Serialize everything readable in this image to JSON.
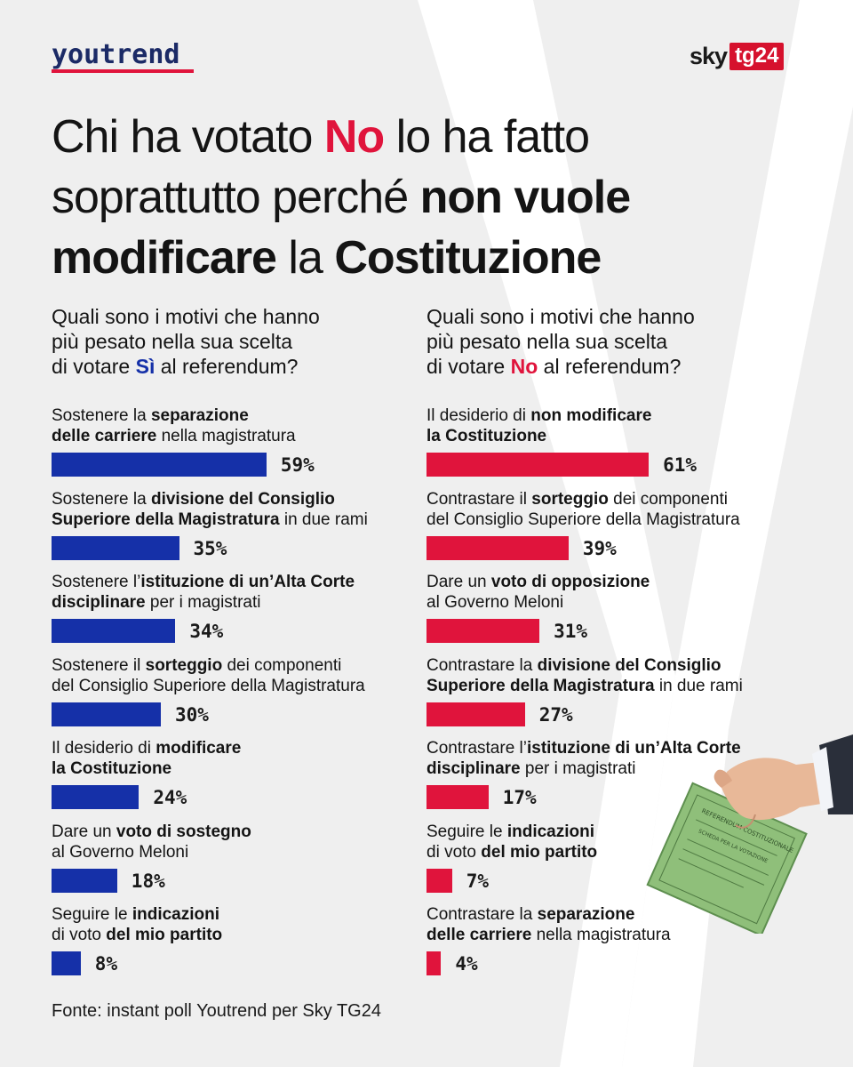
{
  "brand": {
    "youtrend_logo": "youtrend",
    "sky_logo_part1": "sky",
    "sky_logo_part2": "tg24"
  },
  "colors": {
    "background": "#efefef",
    "si_bar": "#1530a8",
    "no_bar": "#e0143c",
    "text": "#141414"
  },
  "headline": {
    "line1_part1": "Chi ha votato ",
    "line1_red": "No",
    "line1_part2": " lo ha fatto",
    "line2_part1": "soprattutto perché ",
    "line2_bold": "non vuole",
    "line3_bold1": "modificare",
    "line3_part": " la ",
    "line3_bold2": "Costituzione"
  },
  "icons": [
    "hand-ballot-illustration",
    "letter-v-watermark"
  ],
  "chart_data": [
    {
      "type": "bar",
      "orientation": "horizontal",
      "question": {
        "line1": "Quali sono i motivi  che hanno",
        "line2": "più pesato nella sua scelta",
        "line3_part1": "di votare ",
        "line3_highlight": "Sì",
        "line3_part2": " al referendum?"
      },
      "color": "#1530a8",
      "categories": [
        "Sostenere la separazione delle carriere nella magistratura",
        "Sostenere la divisione del Consiglio Superiore della Magistratura in due rami",
        "Sostenere l’istituzione di un’Alta Corte disciplinare per i magistrati",
        "Sostenere il sorteggio dei componenti del Consiglio Superiore della Magistratura",
        "Il desiderio di modificare la Costituzione",
        "Dare un voto di sostegno al Governo Meloni",
        "Seguire le indicazioni di voto del mio partito"
      ],
      "values": [
        59,
        35,
        34,
        30,
        24,
        18,
        8
      ],
      "value_labels": [
        "59%",
        "35%",
        "34%",
        "30%",
        "24%",
        "18%",
        "8%"
      ],
      "label_lines": [
        [
          [
            {
              "t": "Sostenere la "
            },
            {
              "t": "separazione",
              "b": true
            }
          ],
          [
            {
              "t": "delle carriere",
              "b": true
            },
            {
              "t": " nella magistratura"
            }
          ]
        ],
        [
          [
            {
              "t": "Sostenere la "
            },
            {
              "t": "divisione del Consiglio",
              "b": true
            }
          ],
          [
            {
              "t": "Superiore della Magistratura",
              "b": true
            },
            {
              "t": " in due rami"
            }
          ]
        ],
        [
          [
            {
              "t": "Sostenere l’"
            },
            {
              "t": "istituzione di un’Alta Corte",
              "b": true
            }
          ],
          [
            {
              "t": "disciplinare",
              "b": true
            },
            {
              "t": " per i magistrati"
            }
          ]
        ],
        [
          [
            {
              "t": "Sostenere il "
            },
            {
              "t": "sorteggio",
              "b": true
            },
            {
              "t": " dei componenti"
            }
          ],
          [
            {
              "t": "del Consiglio Superiore della Magistratura"
            }
          ]
        ],
        [
          [
            {
              "t": "Il desiderio di "
            },
            {
              "t": "modificare",
              "b": true
            }
          ],
          [
            {
              "t": "la Costituzione",
              "b": true
            }
          ]
        ],
        [
          [
            {
              "t": "Dare un "
            },
            {
              "t": "voto di sostegno",
              "b": true
            }
          ],
          [
            {
              "t": "al Governo Meloni"
            }
          ]
        ],
        [
          [
            {
              "t": "Seguire le "
            },
            {
              "t": "indicazioni",
              "b": true
            }
          ],
          [
            {
              "t": "di voto "
            },
            {
              "t": "del mio partito",
              "b": true
            }
          ]
        ]
      ]
    },
    {
      "type": "bar",
      "orientation": "horizontal",
      "question": {
        "line1": "Quali sono i motivi che hanno",
        "line2": "più pesato nella sua scelta",
        "line3_part1": "di votare ",
        "line3_highlight": "No",
        "line3_part2": " al referendum?"
      },
      "color": "#e0143c",
      "categories": [
        "Il desiderio di non modificare la Costituzione",
        "Contrastare il sorteggio dei componenti del Consiglio Superiore della Magistratura",
        "Dare un voto di opposizione al Governo Meloni",
        "Contrastare la divisione del Consiglio Superiore della Magistratura in due rami",
        "Contrastare l’istituzione di un’Alta Corte disciplinare per i magistrati",
        "Seguire le indicazioni di voto del mio partito",
        "Contrastare la separazione delle carriere nella magistratura"
      ],
      "values": [
        61,
        39,
        31,
        27,
        17,
        7,
        4
      ],
      "value_labels": [
        "61%",
        "39%",
        "31%",
        "27%",
        "17%",
        "7%",
        "4%"
      ],
      "label_lines": [
        [
          [
            {
              "t": "Il desiderio di "
            },
            {
              "t": "non modificare",
              "b": true
            }
          ],
          [
            {
              "t": "la Costituzione",
              "b": true
            }
          ]
        ],
        [
          [
            {
              "t": "Contrastare il "
            },
            {
              "t": "sorteggio",
              "b": true
            },
            {
              "t": " dei componenti"
            }
          ],
          [
            {
              "t": "del Consiglio Superiore della Magistratura"
            }
          ]
        ],
        [
          [
            {
              "t": "Dare un "
            },
            {
              "t": "voto di opposizione",
              "b": true
            }
          ],
          [
            {
              "t": "al Governo Meloni"
            }
          ]
        ],
        [
          [
            {
              "t": "Contrastare la "
            },
            {
              "t": "divisione del Consiglio",
              "b": true
            }
          ],
          [
            {
              "t": "Superiore della Magistratura",
              "b": true
            },
            {
              "t": " in due rami"
            }
          ]
        ],
        [
          [
            {
              "t": "Contrastare l’"
            },
            {
              "t": "istituzione di un’Alta Corte",
              "b": true
            }
          ],
          [
            {
              "t": "disciplinare",
              "b": true
            },
            {
              "t": " per i magistrati"
            }
          ]
        ],
        [
          [
            {
              "t": "Seguire le "
            },
            {
              "t": "indicazioni",
              "b": true
            }
          ],
          [
            {
              "t": "di voto "
            },
            {
              "t": "del mio partito",
              "b": true
            }
          ]
        ],
        [
          [
            {
              "t": "Contrastare la "
            },
            {
              "t": "separazione",
              "b": true
            }
          ],
          [
            {
              "t": "delle carriere",
              "b": true
            },
            {
              "t": " nella magistratura"
            }
          ]
        ]
      ]
    }
  ],
  "source": "Fonte: instant poll Youtrend per Sky TG24",
  "ballot_text": {
    "title": "REFERENDUM COSTITUZIONALE",
    "subtitle": "SCHEDA PER LA VOTAZIONE"
  }
}
